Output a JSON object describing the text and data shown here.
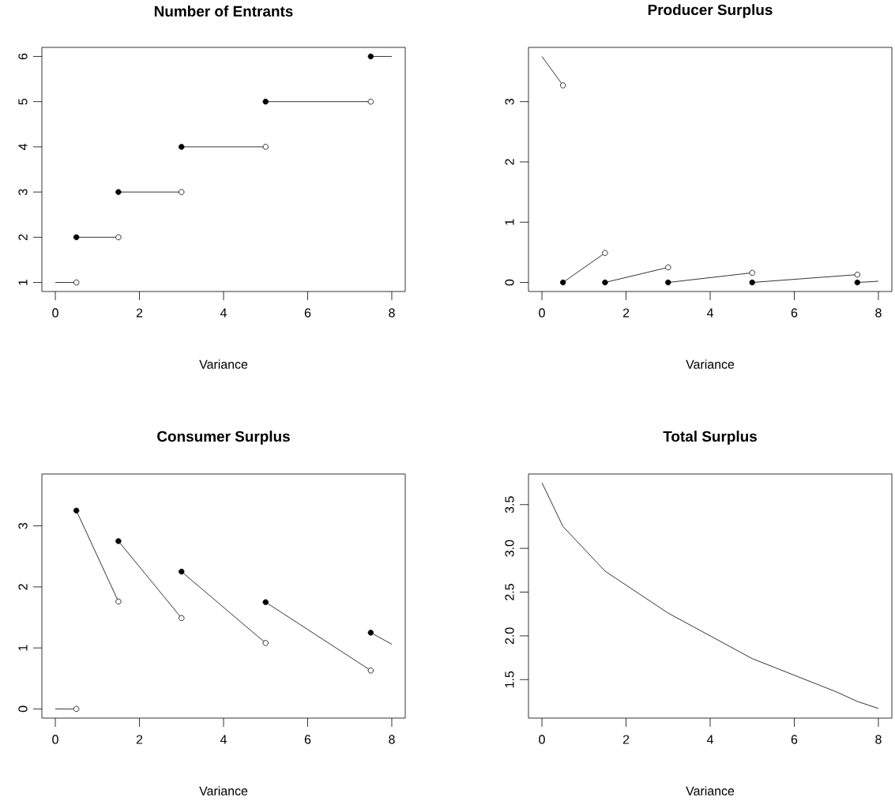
{
  "chart_data": [
    {
      "type": "line",
      "title": "Number of Entrants",
      "xlabel": "Variance",
      "xlim": [
        -0.32,
        8.32
      ],
      "xticks": [
        0,
        2,
        4,
        6,
        8
      ],
      "ylim": [
        0.8,
        6.2
      ],
      "yticks": [
        1,
        2,
        3,
        4,
        5,
        6
      ],
      "series": [
        {
          "color": "#000000",
          "x": [
            0,
            0.5
          ],
          "values": [
            1,
            1
          ]
        },
        {
          "color": "#000000",
          "x": [
            0.5,
            1.5
          ],
          "values": [
            2,
            2
          ]
        },
        {
          "color": "#000000",
          "x": [
            1.5,
            3
          ],
          "values": [
            3,
            3
          ]
        },
        {
          "color": "#000000",
          "x": [
            3,
            5
          ],
          "values": [
            4,
            4
          ]
        },
        {
          "color": "#000000",
          "x": [
            5,
            7.5
          ],
          "values": [
            5,
            5
          ]
        },
        {
          "color": "#000000",
          "x": [
            7.5,
            8
          ],
          "values": [
            6,
            6
          ]
        },
        {
          "type": "scatter",
          "marker": "circle",
          "color": "#000000",
          "x": [
            0.5,
            1.5,
            3,
            5,
            7.5
          ],
          "values": [
            2,
            3,
            4,
            5,
            6
          ]
        },
        {
          "type": "scatter",
          "marker": "circle",
          "color": "#ffffff",
          "x": [
            0.5,
            1.5,
            3,
            5,
            7.5
          ],
          "values": [
            1,
            2,
            3,
            4,
            5
          ]
        }
      ]
    },
    {
      "type": "line",
      "title": "Producer Surplus",
      "xlabel": "Variance",
      "xlim": [
        -0.32,
        8.32
      ],
      "xticks": [
        0,
        2,
        4,
        6,
        8
      ],
      "ylim": [
        -0.15,
        3.9
      ],
      "yticks": [
        0,
        1,
        2,
        3
      ],
      "series": [
        {
          "color": "#000000",
          "x": [
            0,
            0.5
          ],
          "values": [
            3.75,
            3.27
          ]
        },
        {
          "color": "#000000",
          "x": [
            0.5,
            1.5
          ],
          "values": [
            0,
            0.49
          ]
        },
        {
          "color": "#000000",
          "x": [
            1.5,
            3
          ],
          "values": [
            0,
            0.25
          ]
        },
        {
          "color": "#000000",
          "x": [
            3,
            5
          ],
          "values": [
            0,
            0.16
          ]
        },
        {
          "color": "#000000",
          "x": [
            5,
            7.5
          ],
          "values": [
            0,
            0.13
          ]
        },
        {
          "color": "#000000",
          "x": [
            7.5,
            8
          ],
          "values": [
            0,
            0.02
          ]
        },
        {
          "type": "scatter",
          "marker": "circle",
          "color": "#000000",
          "x": [
            0.5,
            1.5,
            3,
            5,
            7.5
          ],
          "values": [
            0,
            0,
            0,
            0,
            0
          ]
        },
        {
          "type": "scatter",
          "marker": "circle",
          "color": "#ffffff",
          "x": [
            0.5,
            1.5,
            3,
            5,
            7.5
          ],
          "values": [
            3.27,
            0.49,
            0.25,
            0.16,
            0.13
          ]
        }
      ]
    },
    {
      "type": "line",
      "title": "Consumer Surplus",
      "xlabel": "Variance",
      "xlim": [
        -0.32,
        8.32
      ],
      "xticks": [
        0,
        2,
        4,
        6,
        8
      ],
      "ylim": [
        -0.15,
        3.85
      ],
      "yticks": [
        0,
        1,
        2,
        3
      ],
      "series": [
        {
          "color": "#000000",
          "x": [
            0,
            0.5
          ],
          "values": [
            0,
            0
          ]
        },
        {
          "color": "#000000",
          "x": [
            0.5,
            1.5
          ],
          "values": [
            3.25,
            1.76
          ]
        },
        {
          "color": "#000000",
          "x": [
            1.5,
            3
          ],
          "values": [
            2.75,
            1.49
          ]
        },
        {
          "color": "#000000",
          "x": [
            3,
            5
          ],
          "values": [
            2.25,
            1.08
          ]
        },
        {
          "color": "#000000",
          "x": [
            5,
            7.5
          ],
          "values": [
            1.75,
            0.63
          ]
        },
        {
          "color": "#000000",
          "x": [
            7.5,
            8
          ],
          "values": [
            1.25,
            1.06
          ]
        },
        {
          "type": "scatter",
          "marker": "circle",
          "color": "#000000",
          "x": [
            0.5,
            1.5,
            3,
            5,
            7.5
          ],
          "values": [
            3.25,
            2.75,
            2.25,
            1.75,
            1.25
          ]
        },
        {
          "type": "scatter",
          "marker": "circle",
          "color": "#ffffff",
          "x": [
            0.5,
            1.5,
            3,
            5,
            7.5
          ],
          "values": [
            0,
            1.76,
            1.49,
            1.08,
            0.63
          ]
        }
      ]
    },
    {
      "type": "line",
      "title": "Total Surplus",
      "xlabel": "Variance",
      "xlim": [
        -0.32,
        8.32
      ],
      "xticks": [
        0,
        2,
        4,
        6,
        8
      ],
      "ylim": [
        1.06,
        3.85
      ],
      "yticks": [
        1.5,
        {
          "value": 2,
          "label": "2.0"
        },
        2.5,
        {
          "value": 3,
          "label": "3.0"
        },
        3.5
      ],
      "series": [
        {
          "color": "#000000",
          "x": [
            0,
            0.5,
            1.5,
            3,
            4,
            5,
            6,
            7,
            7.5,
            8
          ],
          "values": [
            3.75,
            3.25,
            2.74,
            2.26,
            2.0,
            1.74,
            1.55,
            1.36,
            1.25,
            1.17
          ]
        }
      ]
    }
  ]
}
